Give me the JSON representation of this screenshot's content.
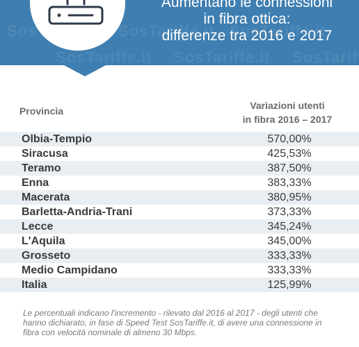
{
  "header": {
    "title_lines": [
      "Aumentano le connessioni",
      "in fibra ottica:",
      "differenze tra 2016 e 2017"
    ],
    "watermark": "SosTariffe.it",
    "icon": "router-icon",
    "colors": {
      "banner": "#3f7eb0",
      "row_shade": "#e9eef3"
    }
  },
  "table": {
    "col_province": "Provincia",
    "col_variation_line1": "Variazioni utenti",
    "col_variation_line2": "in fibra 2016 – 2017",
    "rows": [
      {
        "province": "Olbia-Tempio",
        "value": "570,00%"
      },
      {
        "province": "Siracusa",
        "value": "425,53%"
      },
      {
        "province": "Teramo",
        "value": "387,50%"
      },
      {
        "province": "Enna",
        "value": "383,33%"
      },
      {
        "province": "Macerata",
        "value": "380,95%"
      },
      {
        "province": "Barletta-Andria-Trani",
        "value": "373,33%"
      },
      {
        "province": "Lecce",
        "value": "345,24%"
      },
      {
        "province": "L'Aquila",
        "value": "345,00%"
      },
      {
        "province": "Grosseto",
        "value": "333,33%"
      },
      {
        "province": "Medio Campidano",
        "value": "333,33%"
      },
      {
        "province": "Italia",
        "value": "125,99%"
      }
    ]
  },
  "footnote": "Le percentuali indicano l'incremento - rilevato dal 2016 al 2017 - degli utenti che hanno dichiarato, in fase di Speed Test SosTariffe.it, di avere una connessione in fibra con velocità nominale di almeno 30 Mbps."
}
